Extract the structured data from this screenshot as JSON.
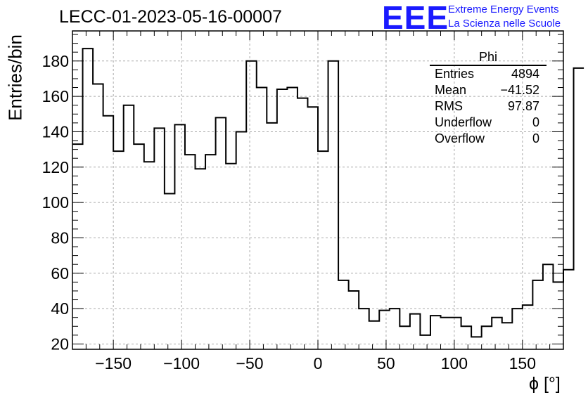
{
  "title": "LECC-01-2023-05-16-00007",
  "logo": {
    "mark": "EEE",
    "line1": "Extreme Energy Events",
    "line2": "La Scienza nelle Scuole",
    "color": "#1a1aff"
  },
  "stats_box": {
    "name": "Phi",
    "rows": [
      {
        "label": "Entries",
        "value": "4894"
      },
      {
        "label": "Mean",
        "value": "−41.52"
      },
      {
        "label": "RMS",
        "value": "97.87"
      },
      {
        "label": "Underflow",
        "value": "0"
      },
      {
        "label": "Overflow",
        "value": "0"
      }
    ]
  },
  "chart_data": {
    "type": "bar",
    "style": "step-histogram",
    "xlabel": "ϕ [°]",
    "ylabel": "Entries/bin",
    "xlim": [
      -180,
      180
    ],
    "ylim": [
      17,
      197
    ],
    "grid": true,
    "bin_width": 7.5,
    "x_ticks": [
      -150,
      -100,
      -50,
      0,
      50,
      100,
      150
    ],
    "y_ticks": [
      20,
      40,
      60,
      80,
      100,
      120,
      140,
      160,
      180
    ],
    "x_tick_labels": [
      "−150",
      "−100",
      "−50",
      "0",
      "50",
      "100",
      "150"
    ],
    "y_tick_labels": [
      "20",
      "40",
      "60",
      "80",
      "100",
      "120",
      "140",
      "160",
      "180"
    ],
    "bin_edges_start": -180,
    "values": [
      133,
      187,
      167,
      149,
      129,
      155,
      133,
      123,
      142,
      105,
      144,
      127,
      119,
      127,
      148,
      122,
      140,
      180,
      165,
      145,
      164,
      165,
      159,
      154,
      129,
      180,
      56,
      50,
      40,
      33,
      39,
      40,
      30,
      37,
      25,
      36,
      35,
      35,
      30,
      24,
      30,
      35,
      32,
      40,
      42,
      56,
      65,
      55,
      62,
      176
    ]
  }
}
